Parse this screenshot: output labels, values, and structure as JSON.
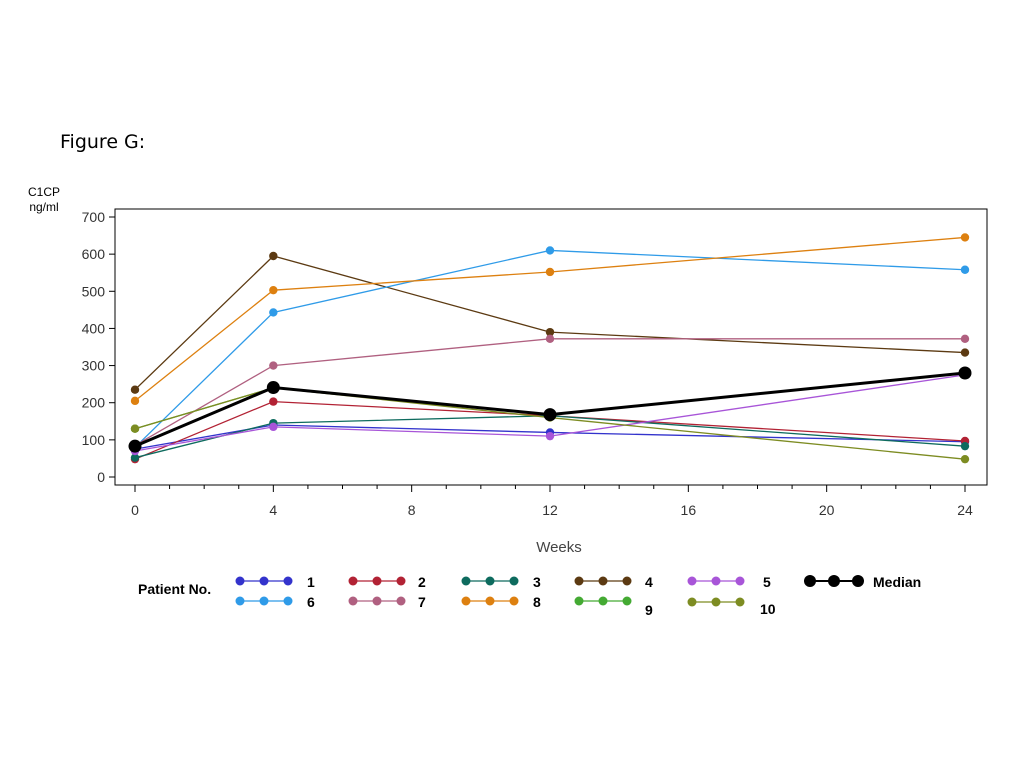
{
  "figure": {
    "title": "Figure G:"
  },
  "chart_data": {
    "type": "line",
    "ylabel_line1": "C1CP",
    "ylabel_line2": "ng/ml",
    "xlabel": "Weeks",
    "xlim": [
      0,
      24
    ],
    "ylim": [
      0,
      700
    ],
    "xticks": [
      0,
      4,
      8,
      12,
      16,
      20,
      24
    ],
    "yticks": [
      0,
      100,
      200,
      300,
      400,
      500,
      600,
      700
    ],
    "legend_title": "Patient No.",
    "legend_position": "bottom",
    "grid": false,
    "x": [
      0,
      4,
      12,
      24
    ],
    "series": [
      {
        "name": "1",
        "color": "#3333cc",
        "values": [
          75,
          140,
          120,
          95
        ]
      },
      {
        "name": "2",
        "color": "#b22234",
        "values": [
          48,
          203,
          165,
          97
        ]
      },
      {
        "name": "3",
        "color": "#0e6b5e",
        "values": [
          52,
          145,
          165,
          83
        ]
      },
      {
        "name": "4",
        "color": "#5c3a12",
        "values": [
          235,
          595,
          390,
          335
        ]
      },
      {
        "name": "5",
        "color": "#a855d8",
        "values": [
          70,
          135,
          110,
          275
        ]
      },
      {
        "name": "6",
        "color": "#2f9be8",
        "values": [
          80,
          443,
          610,
          558
        ]
      },
      {
        "name": "7",
        "color": "#b06080",
        "values": [
          85,
          300,
          372,
          372
        ]
      },
      {
        "name": "8",
        "color": "#dd8010",
        "values": [
          205,
          503,
          552,
          645
        ]
      },
      {
        "name": "9",
        "color": "#44aa33",
        "values": [
          130,
          240,
          null,
          null
        ]
      },
      {
        "name": "10",
        "color": "#7d8c22",
        "values": [
          130,
          240,
          160,
          48
        ]
      },
      {
        "name": "Median",
        "color": "#000000",
        "values": [
          83,
          241,
          168,
          280
        ]
      }
    ]
  }
}
